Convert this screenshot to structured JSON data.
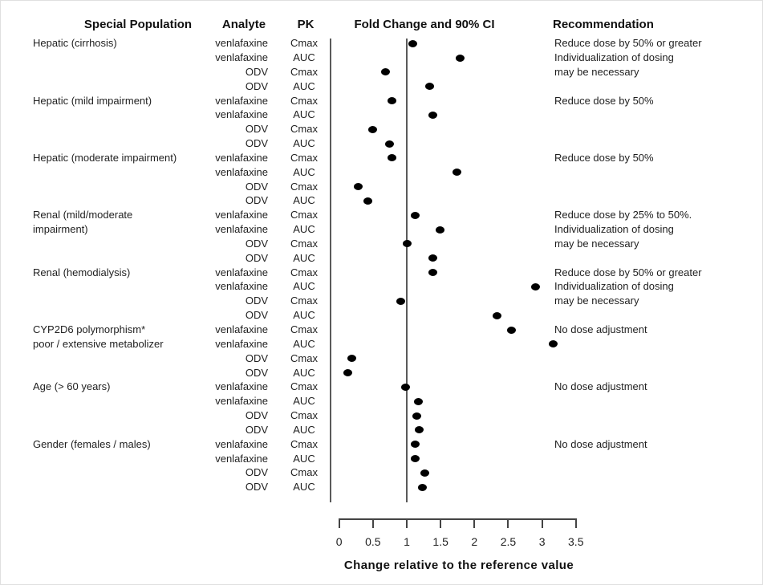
{
  "headers": {
    "population": "Special Population",
    "analyte": "Analyte",
    "pk": "PK",
    "plot": "Fold Change and 90% CI",
    "recommendation": "Recommendation"
  },
  "colors": {
    "dot": "#000000",
    "reference_line": "#5a5a5a",
    "axis": "#444444",
    "text": "#1a1a1a"
  },
  "chart_data": {
    "type": "scatter",
    "subtype": "forest-dot-plot",
    "title": "Fold Change and 90% CI",
    "xlabel": "Change relative to the reference value",
    "xlim": [
      0,
      3.5
    ],
    "x_ticks": [
      0,
      0.5,
      1,
      1.5,
      2,
      2.5,
      3,
      3.5
    ],
    "x_tick_labels": [
      "0",
      "0.5",
      "1",
      "1.5",
      "2",
      "2.5",
      "3",
      "3.5"
    ],
    "reference_line_x": 1,
    "grid": false,
    "legend": "none",
    "groups": [
      {
        "population_lines": [
          "Hepatic (cirrhosis)"
        ],
        "recommendation_lines": [
          "Reduce dose by 50% or greater",
          "Individualization of dosing",
          "may be necessary"
        ],
        "rows": [
          {
            "analyte": "venlafaxine",
            "pk": "Cmax",
            "fold_change": 1.09
          },
          {
            "analyte": "venlafaxine",
            "pk": "AUC",
            "fold_change": 1.79
          },
          {
            "analyte": "ODV",
            "pk": "Cmax",
            "fold_change": 0.68
          },
          {
            "analyte": "ODV",
            "pk": "AUC",
            "fold_change": 1.34
          }
        ]
      },
      {
        "population_lines": [
          "Hepatic (mild impairment)"
        ],
        "recommendation_lines": [
          "Reduce dose by 50%"
        ],
        "rows": [
          {
            "analyte": "venlafaxine",
            "pk": "Cmax",
            "fold_change": 0.78
          },
          {
            "analyte": "venlafaxine",
            "pk": "AUC",
            "fold_change": 1.38
          },
          {
            "analyte": "ODV",
            "pk": "Cmax",
            "fold_change": 0.49
          },
          {
            "analyte": "ODV",
            "pk": "AUC",
            "fold_change": 0.74
          }
        ]
      },
      {
        "population_lines": [
          "Hepatic (moderate impairment)"
        ],
        "recommendation_lines": [
          "Reduce dose by 50%"
        ],
        "rows": [
          {
            "analyte": "venlafaxine",
            "pk": "Cmax",
            "fold_change": 0.78
          },
          {
            "analyte": "venlafaxine",
            "pk": "AUC",
            "fold_change": 1.74
          },
          {
            "analyte": "ODV",
            "pk": "Cmax",
            "fold_change": 0.28
          },
          {
            "analyte": "ODV",
            "pk": "AUC",
            "fold_change": 0.43
          }
        ]
      },
      {
        "population_lines": [
          "Renal (mild/moderate",
          "impairment)"
        ],
        "recommendation_lines": [
          "Reduce dose by 25% to 50%.",
          "Individualization of dosing",
          "may be necessary"
        ],
        "rows": [
          {
            "analyte": "venlafaxine",
            "pk": "Cmax",
            "fold_change": 1.13
          },
          {
            "analyte": "venlafaxine",
            "pk": "AUC",
            "fold_change": 1.49
          },
          {
            "analyte": "ODV",
            "pk": "Cmax",
            "fold_change": 1.0
          },
          {
            "analyte": "ODV",
            "pk": "AUC",
            "fold_change": 1.38
          }
        ]
      },
      {
        "population_lines": [
          "Renal (hemodialysis)"
        ],
        "recommendation_lines": [
          "Reduce dose by 50% or greater",
          "Individualization of dosing",
          "may be necessary"
        ],
        "rows": [
          {
            "analyte": "venlafaxine",
            "pk": "Cmax",
            "fold_change": 1.38
          },
          {
            "analyte": "venlafaxine",
            "pk": "AUC",
            "fold_change": 2.9
          },
          {
            "analyte": "ODV",
            "pk": "Cmax",
            "fold_change": 0.91
          },
          {
            "analyte": "ODV",
            "pk": "AUC",
            "fold_change": 2.33
          }
        ]
      },
      {
        "population_lines": [
          "CYP2D6 polymorphism*",
          "poor / extensive metabolizer"
        ],
        "recommendation_lines": [
          "No dose adjustment"
        ],
        "rows": [
          {
            "analyte": "venlafaxine",
            "pk": "Cmax",
            "fold_change": 2.55
          },
          {
            "analyte": "venlafaxine",
            "pk": "AUC",
            "fold_change": 3.16
          },
          {
            "analyte": "ODV",
            "pk": "Cmax",
            "fold_change": 0.19
          },
          {
            "analyte": "ODV",
            "pk": "AUC",
            "fold_change": 0.13
          }
        ]
      },
      {
        "population_lines": [
          "Age (> 60 years)"
        ],
        "recommendation_lines": [
          "No dose adjustment"
        ],
        "rows": [
          {
            "analyte": "venlafaxine",
            "pk": "Cmax",
            "fold_change": 0.98
          },
          {
            "analyte": "venlafaxine",
            "pk": "AUC",
            "fold_change": 1.17
          },
          {
            "analyte": "ODV",
            "pk": "Cmax",
            "fold_change": 1.15
          },
          {
            "analyte": "ODV",
            "pk": "AUC",
            "fold_change": 1.18
          }
        ]
      },
      {
        "population_lines": [
          "Gender (females / males)"
        ],
        "recommendation_lines": [
          "No dose adjustment"
        ],
        "rows": [
          {
            "analyte": "venlafaxine",
            "pk": "Cmax",
            "fold_change": 1.13
          },
          {
            "analyte": "venlafaxine",
            "pk": "AUC",
            "fold_change": 1.13
          },
          {
            "analyte": "ODV",
            "pk": "Cmax",
            "fold_change": 1.27
          },
          {
            "analyte": "ODV",
            "pk": "AUC",
            "fold_change": 1.23
          }
        ]
      }
    ]
  }
}
